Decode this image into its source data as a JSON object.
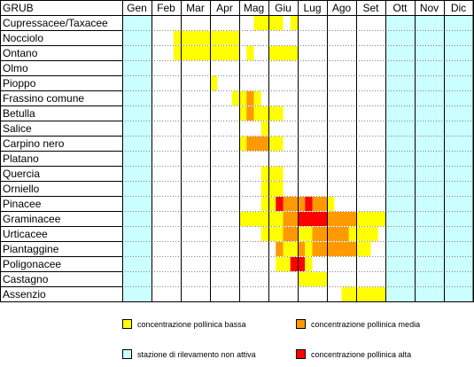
{
  "chart_data": {
    "type": "table",
    "header_label": "GRUB",
    "months": [
      "Gen",
      "Feb",
      "Mar",
      "Apr",
      "Mag",
      "Giu",
      "Lug",
      "Ago",
      "Set",
      "Ott",
      "Nov",
      "Dic"
    ],
    "inactive_month_indices": [
      0,
      9,
      10,
      11
    ],
    "taxa": [
      {
        "name": "Cupressacee/Taxacee",
        "periods": [
          {
            "from": 4.5,
            "to": 5.5,
            "level": "bassa"
          },
          {
            "from": 5.75,
            "to": 6.0,
            "level": "bassa"
          }
        ]
      },
      {
        "name": "Nocciolo",
        "periods": [
          {
            "from": 1.75,
            "to": 4.0,
            "level": "bassa"
          }
        ]
      },
      {
        "name": "Ontano",
        "periods": [
          {
            "from": 1.75,
            "to": 4.0,
            "level": "bassa"
          },
          {
            "from": 4.25,
            "to": 4.5,
            "level": "bassa"
          },
          {
            "from": 5.0,
            "to": 6.0,
            "level": "bassa"
          }
        ]
      },
      {
        "name": "Olmo",
        "periods": []
      },
      {
        "name": "Pioppo",
        "periods": [
          {
            "from": 3.0,
            "to": 3.25,
            "level": "bassa"
          }
        ]
      },
      {
        "name": "Frassino comune",
        "periods": [
          {
            "from": 3.75,
            "to": 4.0,
            "level": "bassa"
          },
          {
            "from": 4.0,
            "to": 4.25,
            "level": "bassa"
          },
          {
            "from": 4.25,
            "to": 4.5,
            "level": "media"
          },
          {
            "from": 4.5,
            "to": 4.75,
            "level": "bassa"
          }
        ]
      },
      {
        "name": "Betulla",
        "periods": [
          {
            "from": 4.0,
            "to": 4.25,
            "level": "bassa"
          },
          {
            "from": 4.25,
            "to": 4.5,
            "level": "media"
          },
          {
            "from": 4.5,
            "to": 5.5,
            "level": "bassa"
          }
        ]
      },
      {
        "name": "Salice",
        "periods": [
          {
            "from": 4.75,
            "to": 5.0,
            "level": "bassa"
          }
        ]
      },
      {
        "name": "Carpino nero",
        "periods": [
          {
            "from": 4.0,
            "to": 4.25,
            "level": "bassa"
          },
          {
            "from": 4.25,
            "to": 5.0,
            "level": "media"
          },
          {
            "from": 5.0,
            "to": 5.5,
            "level": "bassa"
          }
        ]
      },
      {
        "name": "Platano",
        "periods": []
      },
      {
        "name": "Quercia",
        "periods": [
          {
            "from": 4.75,
            "to": 5.5,
            "level": "bassa"
          }
        ]
      },
      {
        "name": "Orniello",
        "periods": [
          {
            "from": 4.75,
            "to": 5.5,
            "level": "bassa"
          }
        ]
      },
      {
        "name": "Pinacee",
        "periods": [
          {
            "from": 4.75,
            "to": 5.25,
            "level": "bassa"
          },
          {
            "from": 5.25,
            "to": 5.5,
            "level": "alta"
          },
          {
            "from": 5.5,
            "to": 6.25,
            "level": "media"
          },
          {
            "from": 6.25,
            "to": 6.5,
            "level": "alta"
          },
          {
            "from": 6.5,
            "to": 7.0,
            "level": "media"
          },
          {
            "from": 7.0,
            "to": 7.25,
            "level": "bassa"
          }
        ]
      },
      {
        "name": "Graminacee",
        "periods": [
          {
            "from": 4.0,
            "to": 5.5,
            "level": "bassa"
          },
          {
            "from": 5.5,
            "to": 6.0,
            "level": "media"
          },
          {
            "from": 6.0,
            "to": 7.0,
            "level": "alta"
          },
          {
            "from": 7.0,
            "to": 8.0,
            "level": "media"
          },
          {
            "from": 8.0,
            "to": 9.0,
            "level": "bassa"
          }
        ]
      },
      {
        "name": "Urticacee",
        "periods": [
          {
            "from": 4.75,
            "to": 5.5,
            "level": "bassa"
          },
          {
            "from": 5.5,
            "to": 6.0,
            "level": "media"
          },
          {
            "from": 6.0,
            "to": 6.5,
            "level": "bassa"
          },
          {
            "from": 6.5,
            "to": 7.75,
            "level": "media"
          },
          {
            "from": 7.75,
            "to": 8.75,
            "level": "bassa"
          }
        ]
      },
      {
        "name": "Piantaggine",
        "periods": [
          {
            "from": 5.25,
            "to": 5.5,
            "level": "media"
          },
          {
            "from": 5.5,
            "to": 6.0,
            "level": "bassa"
          },
          {
            "from": 6.0,
            "to": 6.25,
            "level": "media"
          },
          {
            "from": 6.25,
            "to": 6.5,
            "level": "bassa"
          },
          {
            "from": 6.5,
            "to": 8.0,
            "level": "media"
          },
          {
            "from": 8.0,
            "to": 8.5,
            "level": "bassa"
          }
        ]
      },
      {
        "name": "Poligonacee",
        "periods": [
          {
            "from": 5.25,
            "to": 5.75,
            "level": "bassa"
          },
          {
            "from": 5.75,
            "to": 6.25,
            "level": "alta"
          },
          {
            "from": 6.25,
            "to": 6.5,
            "level": "bassa"
          }
        ]
      },
      {
        "name": "Castagno",
        "periods": [
          {
            "from": 6.0,
            "to": 7.0,
            "level": "bassa"
          }
        ]
      },
      {
        "name": "Assenzio",
        "periods": [
          {
            "from": 7.5,
            "to": 9.0,
            "level": "bassa"
          }
        ]
      }
    ],
    "colors": {
      "bassa": "#ffff00",
      "media": "#ff9900",
      "alta": "#ff0000",
      "inactive": "#ccffff",
      "grid": "#000000",
      "dotted": "#808080"
    },
    "legend": [
      {
        "key": "bassa",
        "label": "concentrazione pollinica bassa"
      },
      {
        "key": "media",
        "label": "concentrazione pollinica media"
      },
      {
        "key": "inactive",
        "label": "stazione di rilevamento non attiva"
      },
      {
        "key": "alta",
        "label": "concentrazione pollinica alta"
      }
    ]
  }
}
